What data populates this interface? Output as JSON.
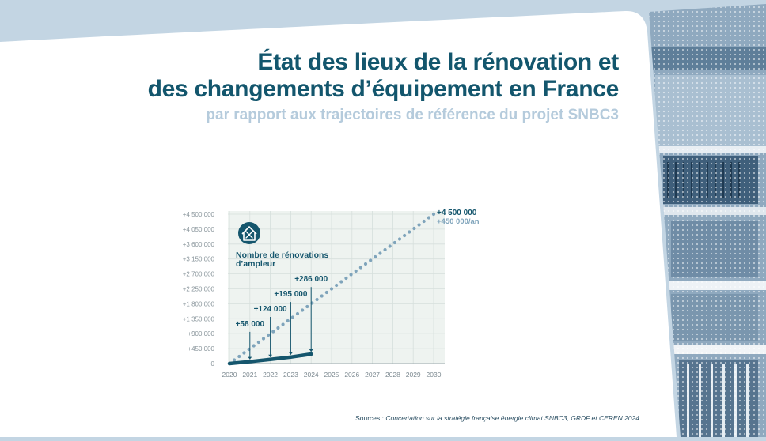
{
  "title_line1": "État des lieux de la rénovation et",
  "title_line2": "des changements d’équipement en France",
  "subtitle": "par rapport aux trajectoires de référence du projet SNBC3",
  "sources_prefix": "Sources : ",
  "sources_text": "Concertation sur la stratégie française énergie climat SNBC3, GRDF et CEREN 2024",
  "colors": {
    "title": "#13566d",
    "subtitle": "#b5cbdc",
    "actual": "#15566d",
    "target": "#7fa4bb",
    "plot_bg": "#eef3f0",
    "page_bg": "#c3d5e3"
  },
  "chart_data": {
    "type": "line",
    "title": "Nombre de rénovations d’ampleur",
    "title_icon": "house-renovation-icon",
    "x": [
      2020,
      2021,
      2022,
      2023,
      2024,
      2025,
      2026,
      2027,
      2028,
      2029,
      2030
    ],
    "xlim": [
      2020,
      2030
    ],
    "ylim": [
      0,
      4500000
    ],
    "yticks": [
      "0",
      "+450 000",
      "+900 000",
      "+1 350 000",
      "+1 800 000",
      "+2 250 000",
      "+2 700 000",
      "+3 150 000",
      "+3 600 000",
      "+4 050 000",
      "+4 500 000"
    ],
    "ytick_values": [
      0,
      450000,
      900000,
      1350000,
      1800000,
      2250000,
      2700000,
      3150000,
      3600000,
      4050000,
      4500000
    ],
    "grid": true,
    "series": [
      {
        "style": "solid",
        "points": [
          [
            2020,
            0
          ],
          [
            2021,
            58000
          ],
          [
            2022,
            124000
          ],
          [
            2023,
            195000
          ],
          [
            2024,
            286000
          ]
        ]
      },
      {
        "style": "dotted",
        "points": [
          [
            2020,
            0
          ],
          [
            2030,
            4500000
          ]
        ]
      }
    ],
    "annotations": [
      {
        "x": 2021,
        "y": 58000,
        "label": "+58 000",
        "label_y": 1050000
      },
      {
        "x": 2022,
        "y": 124000,
        "label": "+124 000",
        "label_y": 1500000
      },
      {
        "x": 2023,
        "y": 195000,
        "label": "+195 000",
        "label_y": 1950000
      },
      {
        "x": 2024,
        "y": 286000,
        "label": "+286 000",
        "label_y": 2400000
      }
    ],
    "end_label_value": "+4 500 000",
    "end_label_rate": "+450 000/an"
  }
}
